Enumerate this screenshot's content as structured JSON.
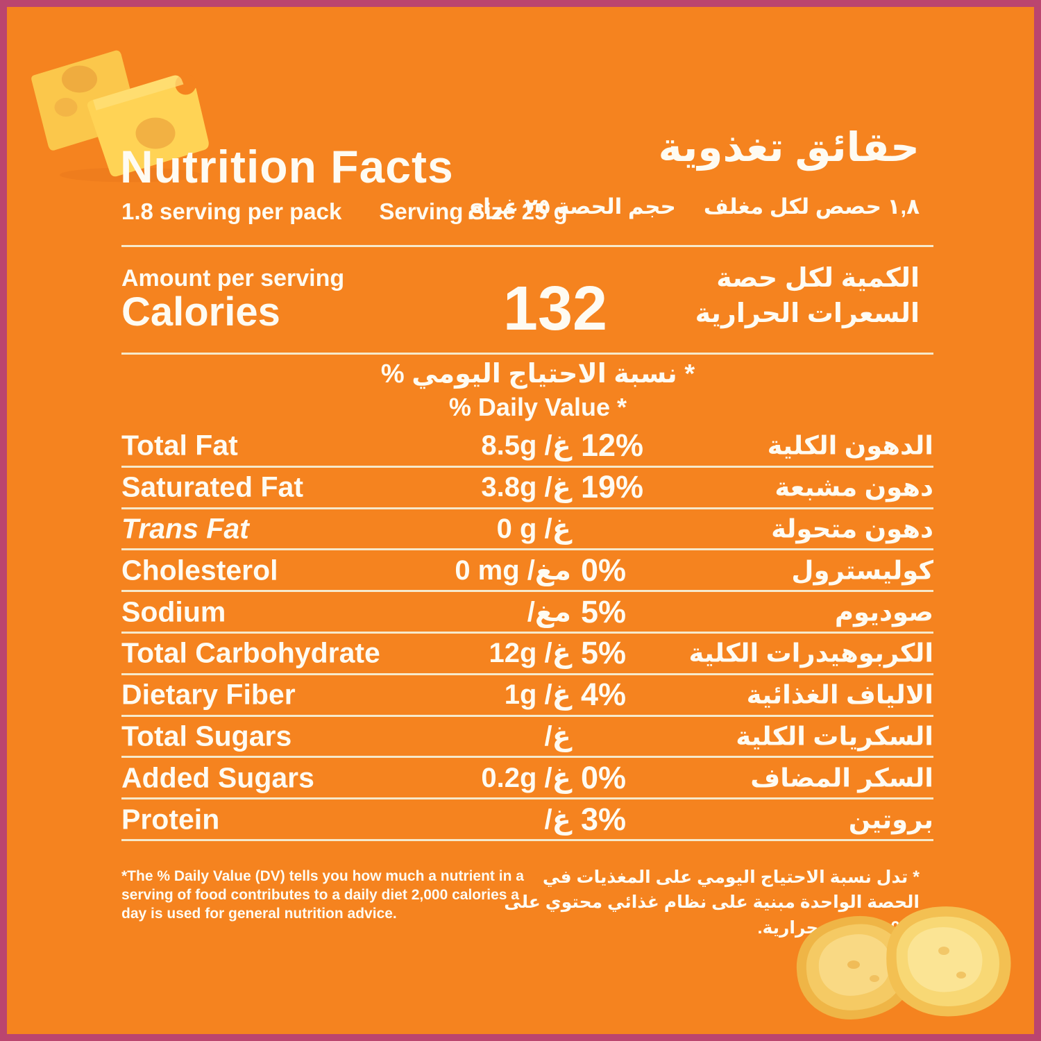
{
  "frame": {
    "background_color": "#F5831F",
    "border_color": "#BB456F",
    "line_color": "#F6E9CB",
    "text_color": "#FEFBF2"
  },
  "header": {
    "title_en": "Nutrition Facts",
    "title_ar": "حقائق تغذوية",
    "servings_en": "1.8 serving per pack",
    "serving_size_en": "Serving Size 25 g",
    "servings_ar": "١,٨ حصص لكل مغلف",
    "serving_size_ar": "حجم الحصة ٢٥ غرام"
  },
  "calories": {
    "amount_label_en": "Amount per serving",
    "label_en": "Calories",
    "value": "132",
    "amount_label_ar": "الكمية لكل حصة",
    "label_ar": "السعرات الحرارية"
  },
  "daily_value_header": {
    "ar": "* نسبة الاحتياج اليومي %",
    "en": "% Daily Value *"
  },
  "rows": [
    {
      "label_en": "Total Fat",
      "italic": false,
      "value": "8.5g",
      "unit_ar": "غ",
      "dv": "12%",
      "label_ar": "الدهون الكلية"
    },
    {
      "label_en": "Saturated Fat",
      "italic": false,
      "value": "3.8g",
      "unit_ar": "غ",
      "dv": "19%",
      "label_ar": "دهون مشبعة"
    },
    {
      "label_en": "Trans Fat",
      "italic": true,
      "value": "0 g",
      "unit_ar": "غ",
      "dv": "",
      "label_ar": "دهون متحولة"
    },
    {
      "label_en": "Cholesterol",
      "italic": false,
      "value": "0 mg",
      "unit_ar": "مغ",
      "dv": "0%",
      "label_ar": "كوليسترول"
    },
    {
      "label_en": "Sodium",
      "italic": false,
      "value": "",
      "unit_ar": "مغ",
      "dv": "5%",
      "label_ar": "صوديوم"
    },
    {
      "label_en": "Total Carbohydrate",
      "italic": false,
      "value": "12g",
      "unit_ar": "غ",
      "dv": "5%",
      "label_ar": "الكربوهيدرات الكلية"
    },
    {
      "label_en": "Dietary Fiber",
      "italic": false,
      "value": "1g",
      "unit_ar": "غ",
      "dv": "4%",
      "label_ar": "الالياف الغذائية"
    },
    {
      "label_en": "Total Sugars",
      "italic": false,
      "value": "",
      "unit_ar": "غ",
      "dv": "",
      "label_ar": "السكريات الكلية"
    },
    {
      "label_en": "Added Sugars",
      "italic": false,
      "value": "0.2g",
      "unit_ar": "غ",
      "dv": "0%",
      "label_ar": "السكر المضاف"
    },
    {
      "label_en": "Protein",
      "italic": false,
      "value": "",
      "unit_ar": "غ",
      "dv": "3%",
      "label_ar": "بروتين"
    }
  ],
  "footnotes": {
    "en": "*The % Daily Value (DV) tells you how much a nutrient in a serving of food contributes to a daily diet 2,000 calories a day is used for general nutrition advice.",
    "ar": "* تدل نسبة الاحتياج اليومي على المغذيات في الحصة الواحدة مبنية على نظام غذائي محتوي على 2,000 سعرة حرارية."
  },
  "icons": {
    "cheese": "cheese-cubes",
    "chips": "potato-chips"
  }
}
